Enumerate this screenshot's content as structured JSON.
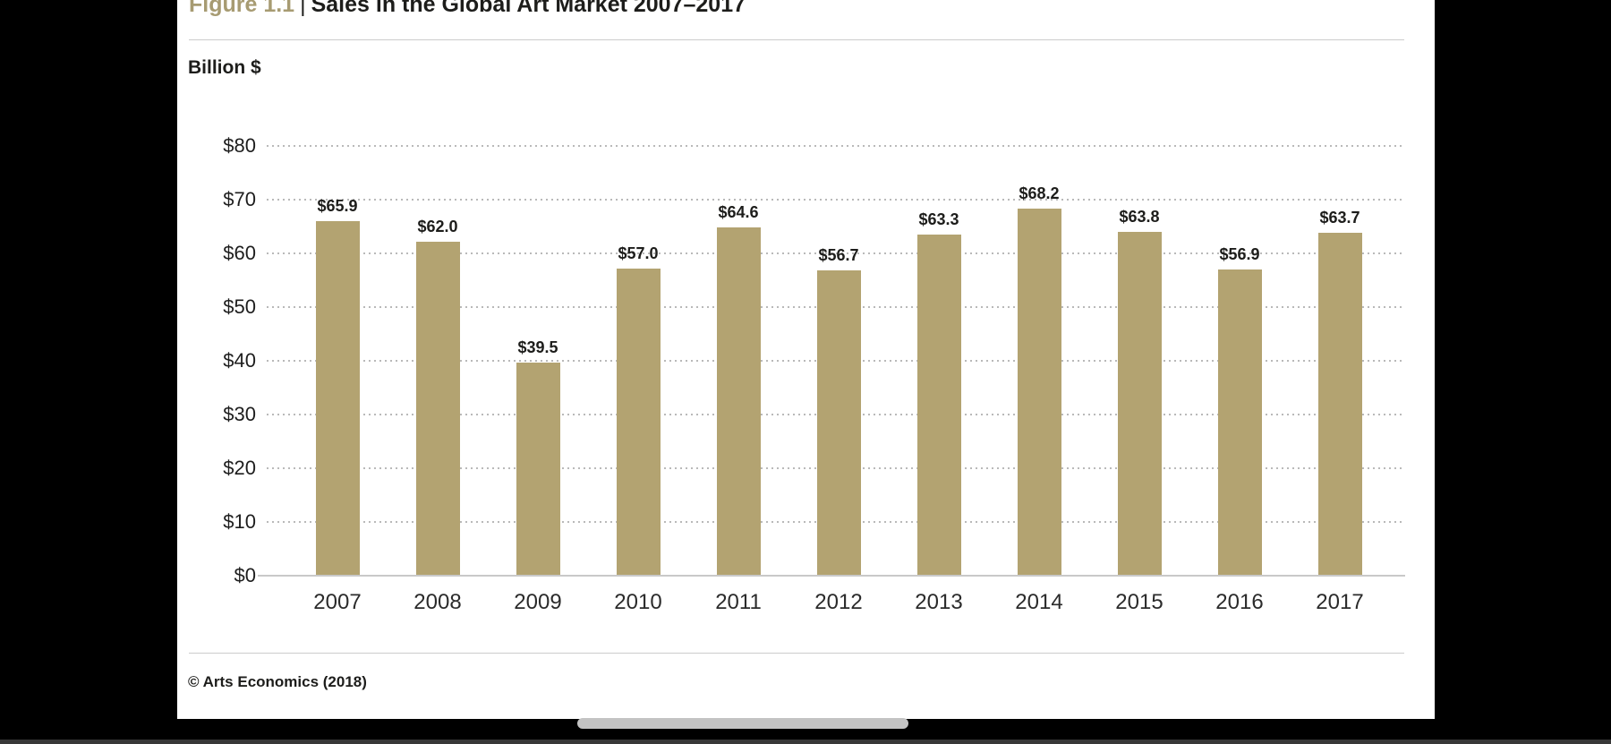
{
  "figure": {
    "label": "Figure 1.1",
    "separator": "|",
    "title": "Sales in the Global Art Market 2007–2017"
  },
  "footer": {
    "copyright": "© Arts Economics (2018)"
  },
  "colors": {
    "bar": "#b3a371",
    "figure_label_accent": "#a79b72",
    "title_text": "#1d1d1b",
    "gridline": "#b9b9b9",
    "axis_line": "#c9c9c9",
    "rule": "#cccccc",
    "page_background": "#ffffff",
    "surround_background": "#000000",
    "scrollbar_thumb": "#c3c3c3"
  },
  "chart_data": {
    "type": "bar",
    "title": "Sales in the Global Art Market 2007–2017",
    "ylabel": "Billion $",
    "xlabel": "",
    "categories": [
      "2007",
      "2008",
      "2009",
      "2010",
      "2011",
      "2012",
      "2013",
      "2014",
      "2015",
      "2016",
      "2017"
    ],
    "values": [
      65.9,
      62.0,
      39.5,
      57.0,
      64.6,
      56.7,
      63.3,
      68.2,
      63.8,
      56.9,
      63.7
    ],
    "value_labels": [
      "$65.9",
      "$62.0",
      "$39.5",
      "$57.0",
      "$64.6",
      "$56.7",
      "$63.3",
      "$68.2",
      "$63.8",
      "$56.9",
      "$63.7"
    ],
    "ylim": [
      0,
      80
    ],
    "ytick_interval": 10,
    "ytick_labels": [
      "$0",
      "$10",
      "$20",
      "$30",
      "$40",
      "$50",
      "$60",
      "$70",
      "$80"
    ],
    "grid": "horizontal-dotted",
    "legend": "none",
    "bar_color": "#b3a371"
  },
  "scrollbar": {
    "orientation": "horizontal"
  }
}
